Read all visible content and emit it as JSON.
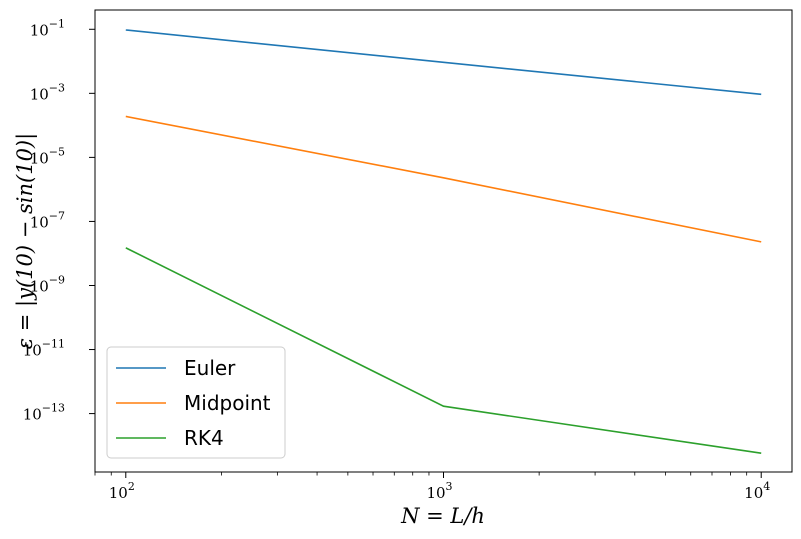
{
  "chart_data": {
    "type": "line",
    "xscale": "log",
    "yscale": "log",
    "xlim": [
      80,
      12500
    ],
    "ylim": [
      1.5e-15,
      0.4
    ],
    "xlabel": "N = L/h",
    "ylabel": "ε = |y(10) − sin(10)|",
    "xticks": [
      {
        "value": 100,
        "base": "10",
        "exp": "2"
      },
      {
        "value": 1000,
        "base": "10",
        "exp": "3"
      },
      {
        "value": 10000,
        "base": "10",
        "exp": "4"
      }
    ],
    "yticks": [
      {
        "value": 0.1,
        "base": "10",
        "exp": "−1"
      },
      {
        "value": 0.001,
        "base": "10",
        "exp": "−3"
      },
      {
        "value": 1e-05,
        "base": "10",
        "exp": "−5"
      },
      {
        "value": 1e-07,
        "base": "10",
        "exp": "−7"
      },
      {
        "value": 1e-09,
        "base": "10",
        "exp": "−9"
      },
      {
        "value": 1e-11,
        "base": "10",
        "exp": "−11"
      },
      {
        "value": 1e-13,
        "base": "10",
        "exp": "−13"
      }
    ],
    "grid": false,
    "legend_position": "lower-left",
    "x": [
      100,
      1000,
      10000
    ],
    "series": [
      {
        "name": "Euler",
        "color": "#1f77b4",
        "values": [
          0.095,
          0.0093,
          0.00093
        ]
      },
      {
        "name": "Midpoint",
        "color": "#ff7f0e",
        "values": [
          0.00019,
          2.3e-06,
          2.3e-08
        ]
      },
      {
        "name": "RK4",
        "color": "#2ca02c",
        "values": [
          1.5e-08,
          1.7e-13,
          5.8e-15
        ]
      }
    ]
  }
}
